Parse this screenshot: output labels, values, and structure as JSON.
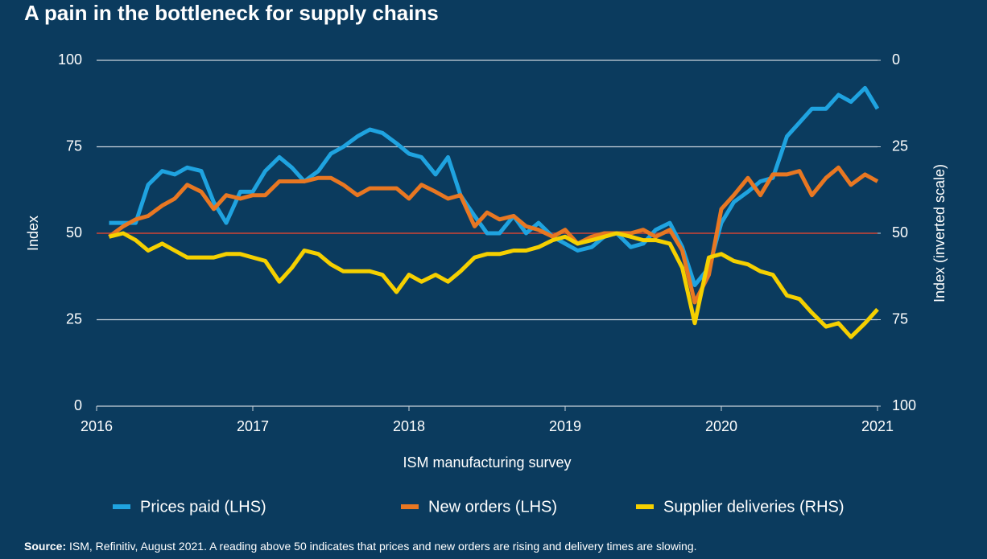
{
  "chart_data": {
    "type": "line",
    "title": "A pain in the bottleneck for supply chains",
    "xlabel": "ISM manufacturing survey",
    "ylabel": "Index",
    "y2label": "Index (inverted scale)",
    "source_label": "Source:",
    "source": "ISM, Refinitiv, August 2021. A reading above 50 indicates that prices and new orders are rising and delivery times are slowing.",
    "x": [
      2016.08,
      2016.17,
      2016.25,
      2016.33,
      2016.42,
      2016.5,
      2016.58,
      2016.67,
      2016.75,
      2016.83,
      2016.92,
      2017.0,
      2017.08,
      2017.17,
      2017.25,
      2017.33,
      2017.42,
      2017.5,
      2017.58,
      2017.67,
      2017.75,
      2017.83,
      2017.92,
      2018.0,
      2018.08,
      2018.17,
      2018.25,
      2018.33,
      2018.42,
      2018.5,
      2018.58,
      2018.67,
      2018.75,
      2018.83,
      2018.92,
      2019.0,
      2019.08,
      2019.17,
      2019.25,
      2019.33,
      2019.42,
      2019.5,
      2019.58,
      2019.67,
      2019.75,
      2019.83,
      2019.92,
      2020.0,
      2020.08,
      2020.17,
      2020.25,
      2020.33,
      2020.42,
      2020.5,
      2020.58,
      2020.67,
      2020.75,
      2020.83,
      2020.92,
      2021.0
    ],
    "xlim": [
      2016,
      2021
    ],
    "xticks": [
      2016,
      2017,
      2018,
      2019,
      2020,
      2021
    ],
    "ylim": [
      0,
      100
    ],
    "yticks": [
      0,
      25,
      50,
      75,
      100
    ],
    "y2lim": [
      0,
      100
    ],
    "y2ticks": [
      0,
      25,
      50,
      75,
      100
    ],
    "y2_inverted": true,
    "reference_line": {
      "value": 50,
      "color": "#c0392b"
    },
    "grid": true,
    "legend": "bottom",
    "series": [
      {
        "name": "Prices paid (LHS)",
        "color": "#1fa3e0",
        "values": [
          53,
          53,
          53,
          64,
          68,
          67,
          69,
          68,
          59,
          53,
          62,
          62,
          68,
          72,
          69,
          65,
          68,
          73,
          75,
          78,
          80,
          79,
          76,
          73,
          72,
          67,
          72,
          61,
          55,
          50,
          50,
          55,
          50,
          53,
          49,
          47,
          45,
          46,
          49,
          50,
          46,
          47,
          51,
          53,
          46,
          35,
          40,
          53,
          59,
          62,
          65,
          66,
          78,
          82,
          86,
          86,
          90,
          88,
          92,
          86
        ]
      },
      {
        "name": "New orders (LHS)",
        "color": "#e87722",
        "values": [
          49,
          52,
          54,
          55,
          58,
          60,
          64,
          62,
          57,
          61,
          60,
          61,
          61,
          65,
          65,
          65,
          66,
          66,
          64,
          61,
          63,
          63,
          63,
          60,
          64,
          62,
          60,
          61,
          52,
          56,
          54,
          55,
          52,
          51,
          49,
          51,
          47,
          49,
          50,
          50,
          50,
          51,
          49,
          51,
          45,
          30,
          38,
          57,
          61,
          66,
          61,
          67,
          67,
          68,
          61,
          66,
          69,
          64,
          67,
          65
        ]
      },
      {
        "name": "Supplier deliveries (RHS)",
        "color": "#f5d000",
        "axis": "y2",
        "values": [
          51,
          50,
          52,
          55,
          53,
          55,
          57,
          57,
          57,
          56,
          56,
          57,
          58,
          64,
          60,
          55,
          56,
          59,
          61,
          61,
          61,
          62,
          67,
          62,
          64,
          62,
          64,
          61,
          57,
          56,
          56,
          55,
          55,
          54,
          52,
          51,
          53,
          52,
          51,
          50,
          51,
          52,
          52,
          53,
          60,
          76,
          57,
          56,
          58,
          59,
          61,
          62,
          68,
          69,
          73,
          77,
          76,
          80,
          76,
          72
        ]
      }
    ]
  }
}
